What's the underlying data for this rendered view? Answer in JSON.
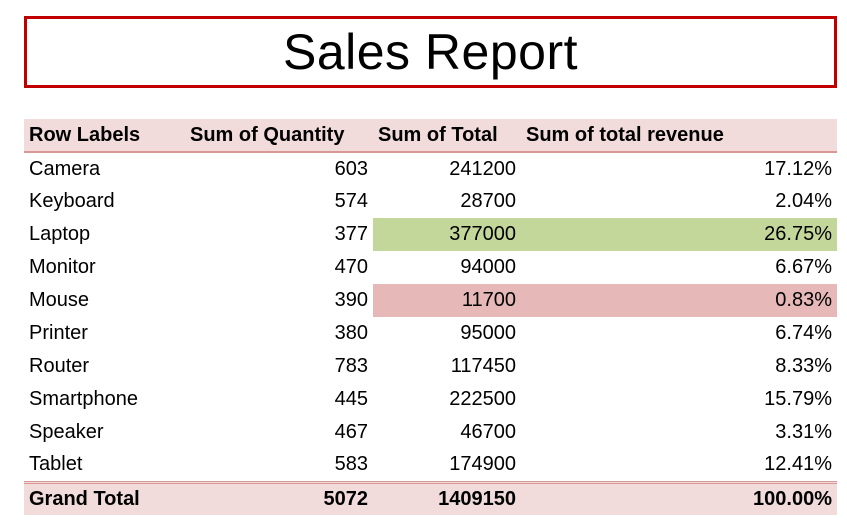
{
  "title": "Sales Report",
  "table": {
    "header": [
      "Row Labels",
      "Sum of Quantity",
      "Sum of Total",
      "Sum of total revenue"
    ],
    "rows": [
      [
        "Camera",
        "603",
        "241200",
        "17.12%"
      ],
      [
        "Keyboard",
        "574",
        "28700",
        "2.04%"
      ],
      [
        "Laptop",
        "377",
        "377000",
        "26.75%"
      ],
      [
        "Monitor",
        "470",
        "94000",
        "6.67%"
      ],
      [
        "Mouse",
        "390",
        "11700",
        "0.83%"
      ],
      [
        "Printer",
        "380",
        "95000",
        "6.74%"
      ],
      [
        "Router",
        "783",
        "117450",
        "8.33%"
      ],
      [
        "Smartphone",
        "445",
        "222500",
        "15.79%"
      ],
      [
        "Speaker",
        "467",
        "46700",
        "3.31%"
      ],
      [
        "Tablet",
        "583",
        "174900",
        "12.41%"
      ]
    ],
    "total": [
      "Grand Total",
      "5072",
      "1409150",
      "100.00%"
    ]
  }
}
